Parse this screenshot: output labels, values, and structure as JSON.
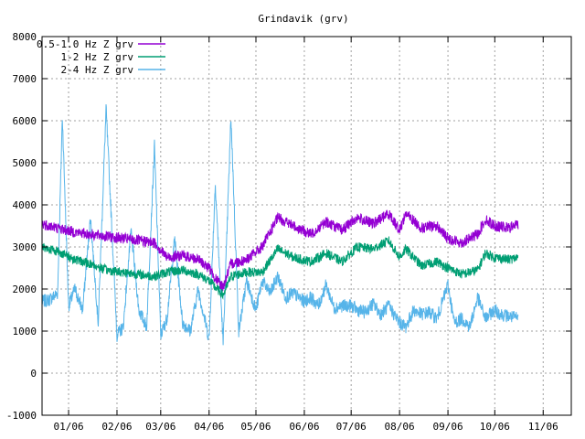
{
  "chart_data": {
    "type": "line",
    "title": "Grindavik (grv)",
    "xlabel": "",
    "ylabel": "",
    "ylim": [
      -1000,
      8000
    ],
    "yticks": [
      -1000,
      0,
      1000,
      2000,
      3000,
      4000,
      5000,
      6000,
      7000,
      8000
    ],
    "xlim": [
      "2022-12-15",
      "2023-11-19"
    ],
    "xticks": [
      {
        "label": "01/06",
        "date": "2023-01-01"
      },
      {
        "label": "02/06",
        "date": "2023-02-01"
      },
      {
        "label": "03/06",
        "date": "2023-03-01"
      },
      {
        "label": "04/06",
        "date": "2023-04-01"
      },
      {
        "label": "05/06",
        "date": "2023-05-01"
      },
      {
        "label": "06/06",
        "date": "2023-06-01"
      },
      {
        "label": "07/06",
        "date": "2023-07-01"
      },
      {
        "label": "08/06",
        "date": "2023-08-01"
      },
      {
        "label": "09/06",
        "date": "2023-09-01"
      },
      {
        "label": "10/06",
        "date": "2023-10-01"
      },
      {
        "label": "11/06",
        "date": "2023-11-01"
      }
    ],
    "grid": true,
    "legend_position": "top-left",
    "series": [
      {
        "name": "0.5-1.0 Hz Z grv",
        "color": "#9400d3",
        "x": [
          "2022-12-15",
          "2022-12-25",
          "2023-01-05",
          "2023-01-15",
          "2023-01-25",
          "2023-02-05",
          "2023-02-15",
          "2023-02-25",
          "2023-03-05",
          "2023-03-15",
          "2023-03-25",
          "2023-04-01",
          "2023-04-06",
          "2023-04-10",
          "2023-04-15",
          "2023-04-25",
          "2023-05-05",
          "2023-05-15",
          "2023-05-25",
          "2023-06-05",
          "2023-06-15",
          "2023-06-25",
          "2023-07-05",
          "2023-07-15",
          "2023-07-25",
          "2023-08-01",
          "2023-08-05",
          "2023-08-15",
          "2023-08-25",
          "2023-09-01",
          "2023-09-10",
          "2023-09-20",
          "2023-09-25",
          "2023-10-01",
          "2023-10-10",
          "2023-10-16"
        ],
        "y": [
          3550,
          3450,
          3350,
          3300,
          3250,
          3200,
          3150,
          3100,
          2750,
          2800,
          2700,
          2500,
          2200,
          2050,
          2600,
          2700,
          3000,
          3700,
          3500,
          3300,
          3600,
          3400,
          3700,
          3550,
          3800,
          3400,
          3800,
          3450,
          3500,
          3200,
          3100,
          3300,
          3650,
          3500,
          3450,
          3550
        ]
      },
      {
        "name": "1-2 Hz Z grv",
        "color": "#009e73",
        "x": [
          "2022-12-15",
          "2022-12-25",
          "2023-01-05",
          "2023-01-15",
          "2023-01-25",
          "2023-02-05",
          "2023-02-15",
          "2023-02-25",
          "2023-03-05",
          "2023-03-15",
          "2023-03-25",
          "2023-04-01",
          "2023-04-06",
          "2023-04-10",
          "2023-04-15",
          "2023-04-25",
          "2023-05-05",
          "2023-05-15",
          "2023-05-25",
          "2023-06-05",
          "2023-06-15",
          "2023-06-25",
          "2023-07-05",
          "2023-07-15",
          "2023-07-25",
          "2023-08-01",
          "2023-08-05",
          "2023-08-15",
          "2023-08-25",
          "2023-09-01",
          "2023-09-10",
          "2023-09-20",
          "2023-09-25",
          "2023-10-01",
          "2023-10-10",
          "2023-10-16"
        ],
        "y": [
          3000,
          2900,
          2700,
          2600,
          2450,
          2400,
          2350,
          2300,
          2400,
          2450,
          2350,
          2200,
          2000,
          1850,
          2300,
          2400,
          2400,
          2950,
          2750,
          2650,
          2850,
          2650,
          3000,
          2950,
          3150,
          2750,
          2950,
          2550,
          2650,
          2500,
          2350,
          2450,
          2850,
          2750,
          2700,
          2750
        ]
      },
      {
        "name": "2-4 Hz Z grv",
        "color": "#56b4e9",
        "x": [
          "2022-12-15",
          "2022-12-20",
          "2022-12-25",
          "2022-12-28",
          "2023-01-01",
          "2023-01-05",
          "2023-01-10",
          "2023-01-15",
          "2023-01-20",
          "2023-01-25",
          "2023-02-01",
          "2023-02-05",
          "2023-02-10",
          "2023-02-15",
          "2023-02-20",
          "2023-02-25",
          "2023-03-01",
          "2023-03-05",
          "2023-03-10",
          "2023-03-15",
          "2023-03-20",
          "2023-03-25",
          "2023-04-01",
          "2023-04-05",
          "2023-04-10",
          "2023-04-15",
          "2023-04-20",
          "2023-04-25",
          "2023-05-01",
          "2023-05-05",
          "2023-05-10",
          "2023-05-15",
          "2023-05-20",
          "2023-05-25",
          "2023-06-01",
          "2023-06-05",
          "2023-06-10",
          "2023-06-15",
          "2023-06-20",
          "2023-06-25",
          "2023-07-01",
          "2023-07-05",
          "2023-07-10",
          "2023-07-15",
          "2023-07-20",
          "2023-07-25",
          "2023-08-01",
          "2023-08-05",
          "2023-08-10",
          "2023-08-15",
          "2023-08-20",
          "2023-08-25",
          "2023-09-01",
          "2023-09-05",
          "2023-09-10",
          "2023-09-15",
          "2023-09-20",
          "2023-09-25",
          "2023-10-01",
          "2023-10-05",
          "2023-10-10",
          "2023-10-16"
        ],
        "y": [
          1700,
          1750,
          1900,
          6100,
          1600,
          2000,
          1500,
          3700,
          1200,
          6300,
          900,
          1100,
          3400,
          1500,
          1100,
          5400,
          900,
          1300,
          3200,
          1200,
          1000,
          2000,
          800,
          4500,
          700,
          6100,
          1000,
          2200,
          1500,
          2200,
          1900,
          2300,
          1800,
          1900,
          1700,
          1800,
          1600,
          2100,
          1550,
          1600,
          1600,
          1500,
          1450,
          1650,
          1400,
          1600,
          1200,
          1100,
          1500,
          1400,
          1450,
          1300,
          2100,
          1200,
          1300,
          1100,
          1800,
          1300,
          1500,
          1400,
          1350,
          1300
        ]
      }
    ]
  }
}
